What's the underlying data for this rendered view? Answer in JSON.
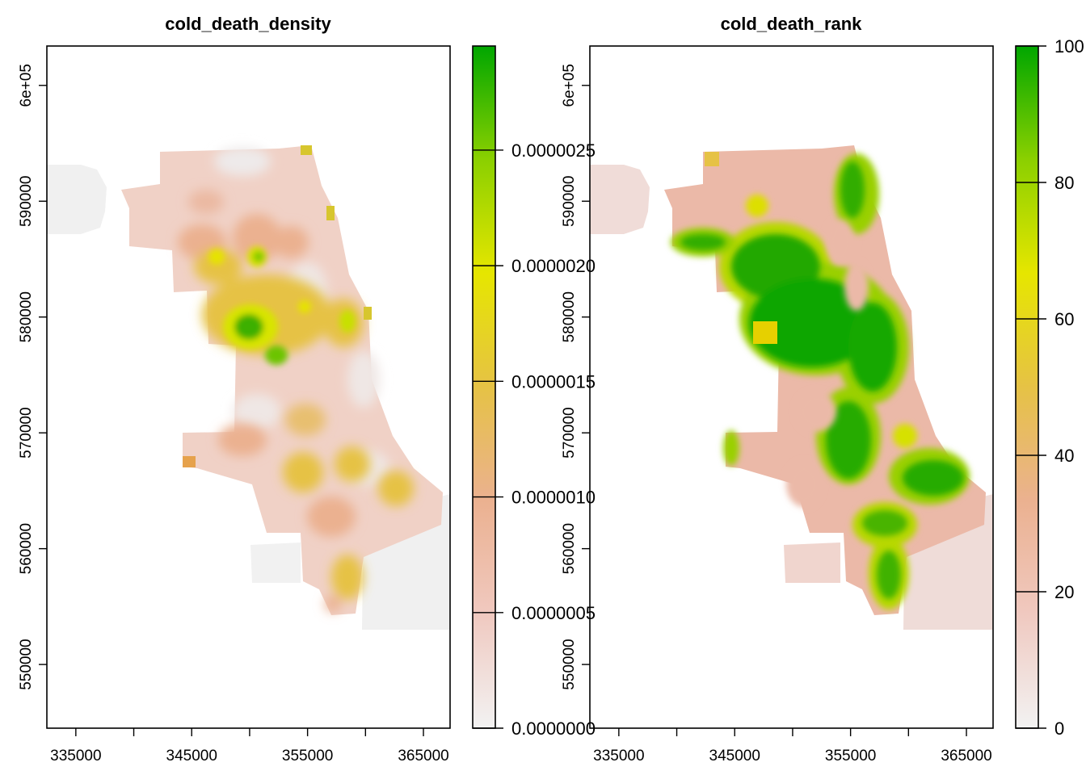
{
  "figure": {
    "palette": [
      "#f2f2f2",
      "#f0c9c0",
      "#ebb190",
      "#e6c245",
      "#e6e600",
      "#8bd000",
      "#00a600"
    ],
    "blank_color": "#ffffff",
    "panels": [
      {
        "id": "density",
        "title": "cold_death_density",
        "x_range": [
          332500,
          367300
        ],
        "y_range": [
          544500,
          603400
        ],
        "x_ticks": [
          335000,
          340000,
          345000,
          350000,
          355000,
          360000,
          365000
        ],
        "x_tick_labels": [
          "335000",
          "",
          "345000",
          "",
          "355000",
          "",
          "365000"
        ],
        "y_ticks": [
          550000,
          560000,
          570000,
          580000,
          590000,
          600000
        ],
        "y_tick_labels": [
          "550000",
          "560000",
          "570000",
          "580000",
          "590000",
          "6e+05"
        ],
        "legend": {
          "range": [
            0,
            2.95e-06
          ],
          "ticks": [
            0,
            5e-07,
            1e-06,
            1.5e-06,
            2e-06,
            2.5e-06
          ],
          "tick_labels": [
            "0.0000000",
            "0.0000005",
            "0.0000010",
            "0.0000015",
            "0.0000020",
            "0.0000025"
          ]
        }
      },
      {
        "id": "rank",
        "title": "cold_death_rank",
        "x_range": [
          332500,
          367300
        ],
        "y_range": [
          544500,
          603400
        ],
        "x_ticks": [
          335000,
          340000,
          345000,
          350000,
          355000,
          360000,
          365000
        ],
        "x_tick_labels": [
          "335000",
          "",
          "345000",
          "",
          "355000",
          "",
          "365000"
        ],
        "y_ticks": [
          550000,
          560000,
          570000,
          580000,
          590000,
          600000
        ],
        "y_tick_labels": [
          "550000",
          "560000",
          "570000",
          "580000",
          "590000",
          "6e+05"
        ],
        "legend": {
          "range": [
            0,
            100
          ],
          "ticks": [
            0,
            20,
            40,
            60,
            80,
            100
          ],
          "tick_labels": [
            "0",
            "20",
            "40",
            "60",
            "80",
            "100"
          ]
        }
      }
    ]
  }
}
